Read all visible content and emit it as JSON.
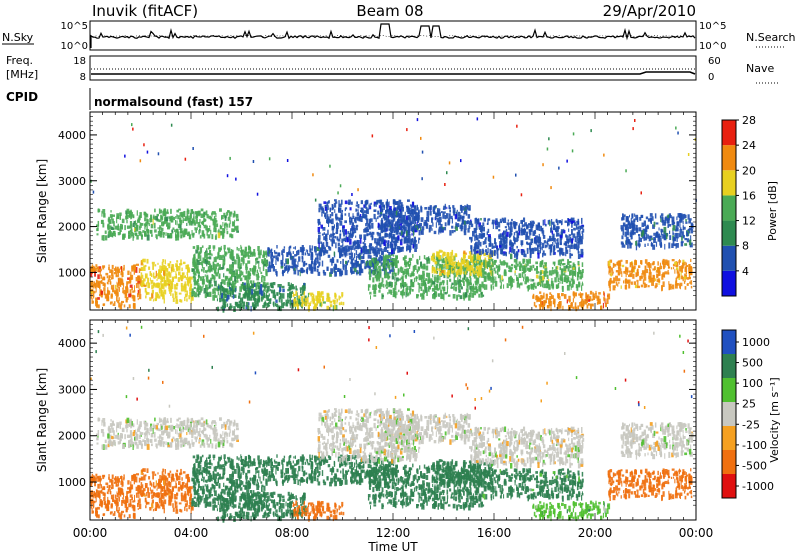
{
  "header": {
    "station": "Inuvik (fitACF)",
    "beam": "Beam 08",
    "date": "29/Apr/2010"
  },
  "noise_panel": {
    "left_label": "N.Sky",
    "left_ticks": [
      "10^5",
      "10^0"
    ],
    "right_ticks": [
      "10^5",
      "10^0"
    ],
    "right_label": "N.Search"
  },
  "freq_panel": {
    "left_label_1": "Freq.",
    "left_label_2": "[MHz]",
    "left_ticks": [
      "18",
      "8"
    ],
    "right_ticks": [
      "60",
      "0"
    ],
    "right_label": "Nave"
  },
  "cpid_panel": {
    "label": "CPID",
    "program": "normalsound (fast) 157"
  },
  "time_axis": {
    "xlabel": "Time UT",
    "ticks": [
      "00:00",
      "04:00",
      "08:00",
      "12:00",
      "16:00",
      "20:00",
      "00:00"
    ]
  },
  "colors": {
    "power": [
      "#1010e0",
      "#2050b0",
      "#2e8a50",
      "#4aaa55",
      "#e8d020",
      "#f08a10",
      "#e82010"
    ],
    "velocity": [
      "#e01010",
      "#f07010",
      "#f5a020",
      "#c8c8c0",
      "#50c030",
      "#2e8050",
      "#2050c0"
    ]
  },
  "chart_data": [
    {
      "type": "heatmap",
      "name": "power",
      "ylabel": "Slant Range [km]",
      "yticks": [
        "1000",
        "2000",
        "3000",
        "4000"
      ],
      "ylim": [
        180,
        4500
      ],
      "xlim_hours": [
        0,
        24
      ],
      "colorbar": {
        "label": "Power [dB]",
        "ticks": [
          "4",
          "8",
          "12",
          "16",
          "20",
          "24",
          "28"
        ]
      },
      "regions": [
        {
          "t0": 0.0,
          "t1": 2.0,
          "r0": 300,
          "r1": 1200,
          "v": 26
        },
        {
          "t0": 2.0,
          "t1": 4.0,
          "r0": 400,
          "r1": 1300,
          "v": 22
        },
        {
          "t0": 0.2,
          "t1": 5.8,
          "r0": 1800,
          "r1": 2400,
          "v": 15
        },
        {
          "t0": 4.0,
          "t1": 7.0,
          "r0": 500,
          "r1": 1600,
          "v": 14
        },
        {
          "t0": 5.0,
          "t1": 8.5,
          "r0": 250,
          "r1": 800,
          "v": 10
        },
        {
          "t0": 7.0,
          "t1": 12.0,
          "r0": 1000,
          "r1": 1600,
          "v": 8
        },
        {
          "t0": 8.0,
          "t1": 10.0,
          "r0": 250,
          "r1": 600,
          "v": 19
        },
        {
          "t0": 9.0,
          "t1": 13.0,
          "r0": 1500,
          "r1": 2600,
          "v": 5
        },
        {
          "t0": 11.0,
          "t1": 15.5,
          "r0": 500,
          "r1": 1400,
          "v": 14
        },
        {
          "t0": 11.5,
          "t1": 15.0,
          "r0": 1900,
          "r1": 2500,
          "v": 7
        },
        {
          "t0": 13.5,
          "t1": 16.0,
          "r0": 1000,
          "r1": 1500,
          "v": 20
        },
        {
          "t0": 15.5,
          "t1": 19.5,
          "r0": 700,
          "r1": 1300,
          "v": 17
        },
        {
          "t0": 15.0,
          "t1": 19.5,
          "r0": 1400,
          "r1": 2200,
          "v": 6
        },
        {
          "t0": 17.5,
          "t1": 20.5,
          "r0": 250,
          "r1": 600,
          "v": 26
        },
        {
          "t0": 20.5,
          "t1": 23.8,
          "r0": 700,
          "r1": 1300,
          "v": 24
        },
        {
          "t0": 21.0,
          "t1": 23.8,
          "r0": 1600,
          "r1": 2300,
          "v": 9
        }
      ]
    },
    {
      "type": "heatmap",
      "name": "velocity",
      "ylabel": "Slant Range [km]",
      "yticks": [
        "1000",
        "2000",
        "3000",
        "4000"
      ],
      "ylim": [
        180,
        4500
      ],
      "xlim_hours": [
        0,
        24
      ],
      "colorbar": {
        "label": "Velocity [m s⁻¹]",
        "ticks": [
          "1000",
          "500",
          "100",
          "25",
          "-25",
          "-100",
          "-500",
          "-1000"
        ]
      },
      "regions": [
        {
          "t0": 0.0,
          "t1": 2.0,
          "r0": 300,
          "r1": 1200,
          "v": -300
        },
        {
          "t0": 2.0,
          "t1": 4.0,
          "r0": 400,
          "r1": 1300,
          "v": -150
        },
        {
          "t0": 0.2,
          "t1": 5.8,
          "r0": 1800,
          "r1": 2400,
          "v": 0
        },
        {
          "t0": 4.0,
          "t1": 7.0,
          "r0": 500,
          "r1": 1600,
          "v": 200
        },
        {
          "t0": 5.0,
          "t1": 8.5,
          "r0": 250,
          "r1": 800,
          "v": 200
        },
        {
          "t0": 7.0,
          "t1": 12.0,
          "r0": 1000,
          "r1": 1600,
          "v": 200
        },
        {
          "t0": 8.0,
          "t1": 10.0,
          "r0": 250,
          "r1": 600,
          "v": -300
        },
        {
          "t0": 9.0,
          "t1": 13.0,
          "r0": 1500,
          "r1": 2600,
          "v": 0
        },
        {
          "t0": 11.0,
          "t1": 15.5,
          "r0": 500,
          "r1": 1400,
          "v": 300
        },
        {
          "t0": 11.5,
          "t1": 15.0,
          "r0": 1900,
          "r1": 2500,
          "v": 0
        },
        {
          "t0": 13.5,
          "t1": 16.0,
          "r0": 1000,
          "r1": 1500,
          "v": 200
        },
        {
          "t0": 15.5,
          "t1": 19.5,
          "r0": 700,
          "r1": 1300,
          "v": 150
        },
        {
          "t0": 15.0,
          "t1": 19.5,
          "r0": 1400,
          "r1": 2200,
          "v": 0
        },
        {
          "t0": 17.5,
          "t1": 20.5,
          "r0": 250,
          "r1": 600,
          "v": 60
        },
        {
          "t0": 20.5,
          "t1": 23.8,
          "r0": 700,
          "r1": 1300,
          "v": -300
        },
        {
          "t0": 21.0,
          "t1": 23.8,
          "r0": 1600,
          "r1": 2300,
          "v": 0
        }
      ]
    }
  ]
}
